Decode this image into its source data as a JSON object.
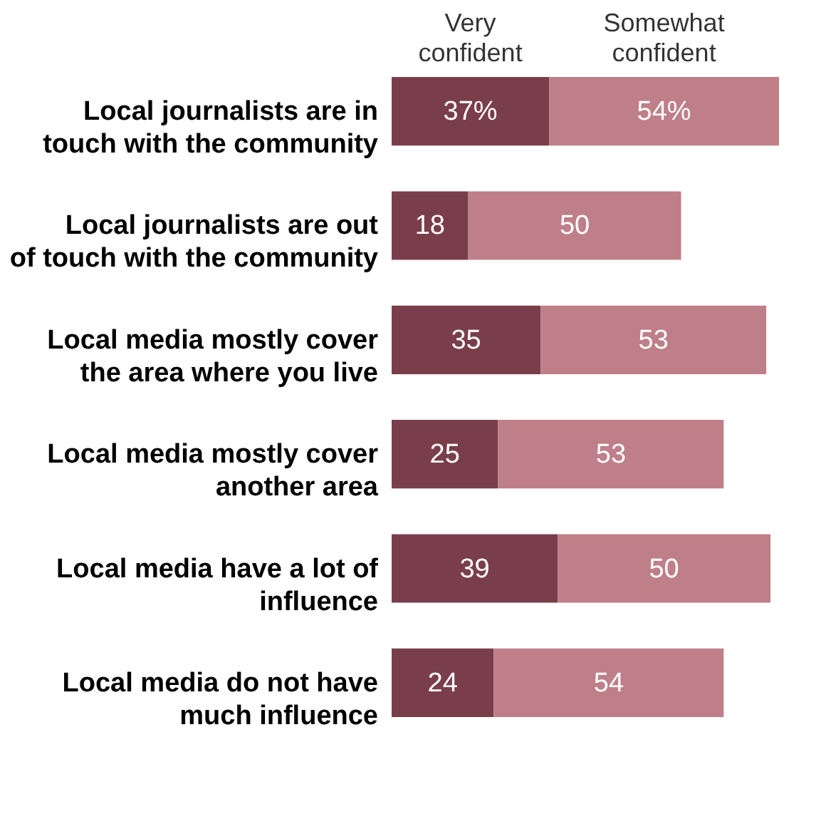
{
  "chart_data": {
    "type": "bar",
    "orientation": "horizontal",
    "stacked": true,
    "legend": "top",
    "tick_labels": "y",
    "xlim": [
      0,
      91
    ],
    "categories": [
      "Local journalists are in touch with the community",
      "Local journalists are out of touch with the community",
      "Local media mostly cover the area where you live",
      "Local media mostly cover another area",
      "Local media have a lot of influence",
      "Local media do not have much influence"
    ],
    "series": [
      {
        "name": "Very confident",
        "color": "#7a3e4b",
        "values": [
          37,
          18,
          35,
          25,
          39,
          24
        ],
        "value_labels": [
          "37%",
          "18",
          "35",
          "25",
          "39",
          "24"
        ]
      },
      {
        "name": "Somewhat confident",
        "color": "#bf7f88",
        "values": [
          54,
          50,
          53,
          53,
          50,
          54
        ],
        "value_labels": [
          "54%",
          "50",
          "53",
          "53",
          "50",
          "54"
        ]
      }
    ]
  }
}
